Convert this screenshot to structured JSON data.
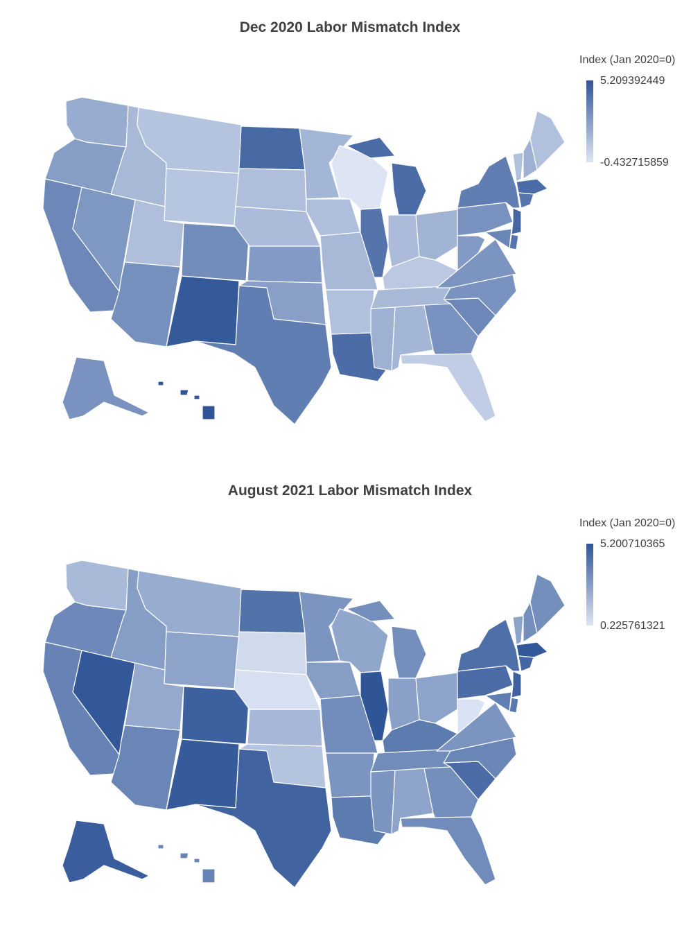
{
  "maps": [
    {
      "title": "Dec 2020 Labor Mismatch Index",
      "legend": {
        "title": "Index (Jan 2020=0)",
        "max": "5.209392449",
        "min": "-0.432715859"
      },
      "scale": {
        "min_value": -0.432715859,
        "max_value": 5.209392449,
        "color_low": "#dde5f4",
        "color_high": "#2f5597"
      },
      "states": {
        "WA": 1.8,
        "OR": 2.4,
        "CA": 3.2,
        "NV": 2.6,
        "ID": 1.3,
        "MT": 0.9,
        "WY": 0.8,
        "UT": 1.1,
        "AZ": 2.9,
        "CO": 3.0,
        "NM": 5.0,
        "ND": 4.4,
        "SD": 1.1,
        "NE": 1.2,
        "KS": 2.5,
        "OK": 2.3,
        "TX": 3.6,
        "MN": 1.4,
        "IA": 1.1,
        "MO": 1.3,
        "AR": 1.0,
        "LA": 4.3,
        "WI": -0.43,
        "IL": 4.0,
        "MI": 4.3,
        "IN": 1.2,
        "OH": 1.5,
        "KY": 0.7,
        "TN": 1.3,
        "MS": 1.6,
        "AL": 1.4,
        "GA": 2.8,
        "FL": 0.5,
        "SC": 3.2,
        "NC": 2.8,
        "VA": 2.7,
        "WV": 2.5,
        "PA": 2.8,
        "NY": 3.6,
        "VT": 1.0,
        "NH": 1.6,
        "ME": 1.0,
        "MA": 4.3,
        "CT": 3.9,
        "NJ": 4.5,
        "DE": 4.0,
        "MD": 3.3,
        "AK": 2.8,
        "HI": 5.2
      }
    },
    {
      "title": "August 2021 Labor Mismatch Index",
      "legend": {
        "title": "Index (Jan 2020=0)",
        "max": "5.200710365",
        "min": "0.225761321"
      },
      "scale": {
        "min_value": 0.225761321,
        "max_value": 5.200710365,
        "color_low": "#dde5f4",
        "color_high": "#2f5597"
      },
      "states": {
        "WA": 1.7,
        "OR": 3.4,
        "CA": 3.6,
        "NV": 5.1,
        "ID": 2.7,
        "MT": 2.2,
        "WY": 2.5,
        "UT": 2.3,
        "AZ": 3.5,
        "CO": 4.8,
        "NM": 5.0,
        "ND": 4.2,
        "SD": 0.6,
        "NE": 0.4,
        "KS": 1.8,
        "OK": 1.4,
        "TX": 4.7,
        "MN": 3.0,
        "IA": 2.7,
        "MO": 3.3,
        "AR": 3.0,
        "LA": 3.9,
        "WI": 2.4,
        "IL": 5.2,
        "MI": 3.2,
        "IN": 2.6,
        "OH": 2.5,
        "KY": 3.9,
        "TN": 3.3,
        "MS": 3.0,
        "AL": 2.5,
        "GA": 3.2,
        "FL": 3.3,
        "SC": 4.4,
        "NC": 3.5,
        "VA": 3.0,
        "WV": 0.3,
        "PA": 4.4,
        "NY": 4.3,
        "VT": 2.5,
        "NH": 3.2,
        "ME": 3.2,
        "MA": 5.1,
        "CT": 4.6,
        "NJ": 4.8,
        "DE": 4.0,
        "MD": 3.8,
        "AK": 4.9,
        "HI": 3.6
      }
    }
  ]
}
